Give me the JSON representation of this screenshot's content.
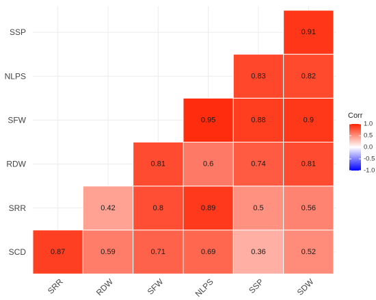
{
  "chart_data": {
    "type": "heatmap",
    "x_categories": [
      "SRR",
      "RDW",
      "SFW",
      "NLPS",
      "SSP",
      "SDW"
    ],
    "y_categories": [
      "SCD",
      "SRR",
      "RDW",
      "SFW",
      "NLPS",
      "SSP"
    ],
    "cells": [
      {
        "x": "SRR",
        "y": "SCD",
        "value": 0.87,
        "label": "0.87"
      },
      {
        "x": "RDW",
        "y": "SCD",
        "value": 0.59,
        "label": "0.59"
      },
      {
        "x": "SFW",
        "y": "SCD",
        "value": 0.71,
        "label": "0.71"
      },
      {
        "x": "NLPS",
        "y": "SCD",
        "value": 0.69,
        "label": "0.69"
      },
      {
        "x": "SSP",
        "y": "SCD",
        "value": 0.36,
        "label": "0.36"
      },
      {
        "x": "SDW",
        "y": "SCD",
        "value": 0.52,
        "label": "0.52"
      },
      {
        "x": "RDW",
        "y": "SRR",
        "value": 0.42,
        "label": "0.42"
      },
      {
        "x": "SFW",
        "y": "SRR",
        "value": 0.8,
        "label": "0.8"
      },
      {
        "x": "NLPS",
        "y": "SRR",
        "value": 0.89,
        "label": "0.89"
      },
      {
        "x": "SSP",
        "y": "SRR",
        "value": 0.5,
        "label": "0.5"
      },
      {
        "x": "SDW",
        "y": "SRR",
        "value": 0.56,
        "label": "0.56"
      },
      {
        "x": "SFW",
        "y": "RDW",
        "value": 0.81,
        "label": "0.81"
      },
      {
        "x": "NLPS",
        "y": "RDW",
        "value": 0.6,
        "label": "0.6"
      },
      {
        "x": "SSP",
        "y": "RDW",
        "value": 0.74,
        "label": "0.74"
      },
      {
        "x": "SDW",
        "y": "RDW",
        "value": 0.81,
        "label": "0.81"
      },
      {
        "x": "NLPS",
        "y": "SFW",
        "value": 0.95,
        "label": "0.95"
      },
      {
        "x": "SSP",
        "y": "SFW",
        "value": 0.88,
        "label": "0.88"
      },
      {
        "x": "SDW",
        "y": "SFW",
        "value": 0.9,
        "label": "0.9"
      },
      {
        "x": "SSP",
        "y": "NLPS",
        "value": 0.83,
        "label": "0.83"
      },
      {
        "x": "SDW",
        "y": "NLPS",
        "value": 0.82,
        "label": "0.82"
      },
      {
        "x": "SDW",
        "y": "SSP",
        "value": 0.91,
        "label": "0.91"
      }
    ],
    "legend": {
      "title": "Corr",
      "ticks": [
        "1.0",
        "0.5",
        "0.0",
        "-0.5",
        "-1.0"
      ],
      "tick_values": [
        1.0,
        0.5,
        0.0,
        -0.5,
        -1.0
      ],
      "range": [
        -1,
        1
      ],
      "colors": {
        "low": "#0000ff",
        "mid": "#ffffff",
        "high": "#ff2200"
      },
      "placement": "right"
    },
    "title": "",
    "xlabel": "",
    "ylabel": "",
    "grid": true
  }
}
